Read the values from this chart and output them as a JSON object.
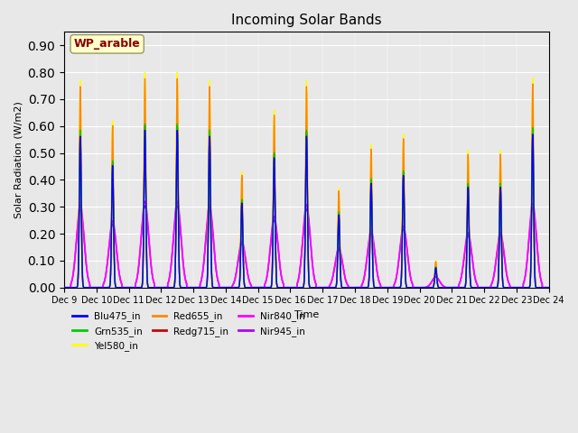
{
  "title": "Incoming Solar Bands",
  "xlabel": "Time",
  "ylabel": "Solar Radiation (W/m2)",
  "annotation": "WP_arable",
  "yticks": [
    0.0,
    0.1,
    0.2,
    0.3,
    0.4,
    0.5,
    0.6,
    0.7,
    0.8,
    0.9
  ],
  "xtick_labels": [
    "Dec 9",
    "Dec 10",
    "Dec 11",
    "Dec 12",
    "Dec 13",
    "Dec 14",
    "Dec 15",
    "Dec 16",
    "Dec 17",
    "Dec 18",
    "Dec 19",
    "Dec 20",
    "Dec 21",
    "Dec 22",
    "Dec 23",
    "Dec 24"
  ],
  "bands": {
    "Blu475_in": {
      "color": "#0000ff",
      "lw": 1.0
    },
    "Grn535_in": {
      "color": "#00cc00",
      "lw": 1.0
    },
    "Yel580_in": {
      "color": "#ffff00",
      "lw": 1.0
    },
    "Red655_in": {
      "color": "#ff8800",
      "lw": 1.0
    },
    "Redg715_in": {
      "color": "#cc0000",
      "lw": 1.0
    },
    "Nir840_in": {
      "color": "#ff00ff",
      "lw": 1.2
    },
    "Nir945_in": {
      "color": "#aa00ff",
      "lw": 1.2
    }
  },
  "legend_order": [
    "Blu475_in",
    "Grn535_in",
    "Yel580_in",
    "Red655_in",
    "Redg715_in",
    "Nir840_in",
    "Nir945_in"
  ],
  "bg_color": "#e8e8e8",
  "ax_bg_color": "#e8e8e8",
  "annotation_bg": "#ffffcc",
  "annotation_fg": "#880000",
  "peak_values": [
    0.77,
    0.62,
    0.8,
    0.8,
    0.77,
    0.43,
    0.66,
    0.77,
    0.37,
    0.53,
    0.57,
    0.1,
    0.51,
    0.51,
    0.78,
    0.0
  ],
  "ylim": [
    0.0,
    0.95
  ],
  "figsize": [
    6.4,
    4.8
  ],
  "dpi": 100
}
